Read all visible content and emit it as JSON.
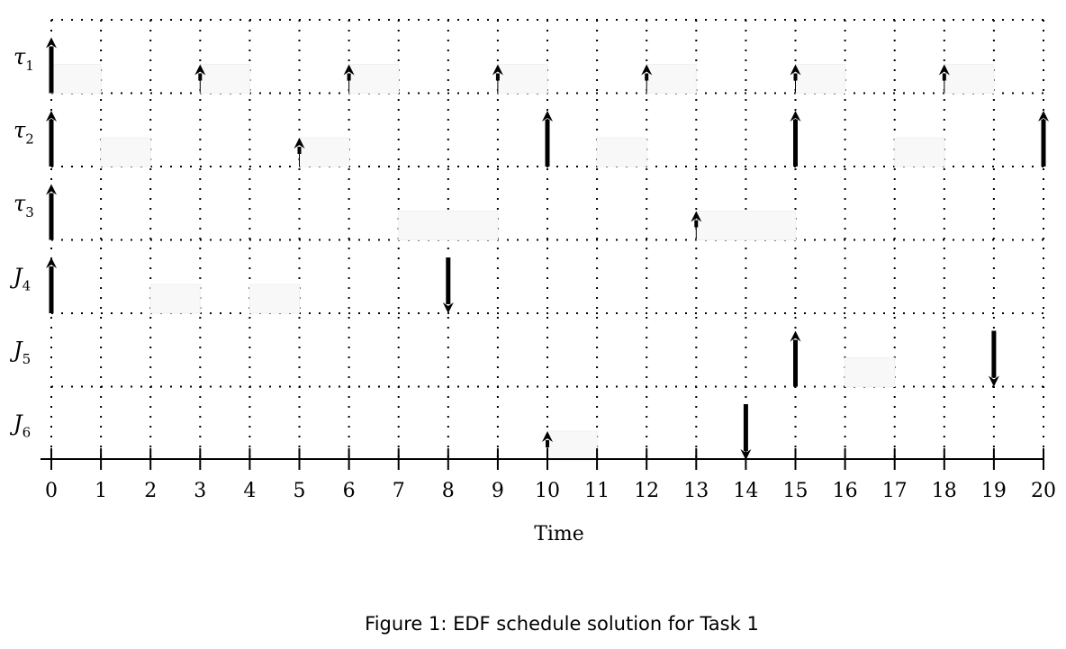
{
  "chart_data": {
    "type": "gantt",
    "xlabel": "Time",
    "x_ticks": [
      0,
      1,
      2,
      3,
      4,
      5,
      6,
      7,
      8,
      9,
      10,
      11,
      12,
      13,
      14,
      15,
      16,
      17,
      18,
      19,
      20
    ],
    "xlim": [
      0,
      20
    ],
    "grid": true,
    "rows": [
      {
        "label": "τ",
        "sub": "1",
        "executions": [
          [
            0,
            1
          ],
          [
            3,
            4
          ],
          [
            6,
            7
          ],
          [
            9,
            10
          ],
          [
            12,
            13
          ],
          [
            15,
            16
          ],
          [
            18,
            19
          ]
        ],
        "releases": [
          0,
          3,
          6,
          9,
          12,
          15,
          18
        ],
        "deadlines": []
      },
      {
        "label": "τ",
        "sub": "2",
        "executions": [
          [
            1,
            2
          ],
          [
            5,
            6
          ],
          [
            11,
            12
          ],
          [
            17,
            18
          ]
        ],
        "releases": [
          0,
          5,
          10,
          15,
          20
        ],
        "deadlines": []
      },
      {
        "label": "τ",
        "sub": "3",
        "executions": [
          [
            7,
            9
          ],
          [
            13,
            15
          ]
        ],
        "releases": [
          0,
          13
        ],
        "deadlines": []
      },
      {
        "label": "J",
        "sub": "4",
        "executions": [
          [
            2,
            3
          ],
          [
            4,
            5
          ]
        ],
        "releases": [
          0
        ],
        "deadlines": [
          8
        ]
      },
      {
        "label": "J",
        "sub": "5",
        "executions": [
          [
            16,
            17
          ]
        ],
        "releases": [
          15
        ],
        "deadlines": [
          19
        ]
      },
      {
        "label": "J",
        "sub": "6",
        "executions": [
          [
            10,
            11
          ]
        ],
        "releases": [
          10
        ],
        "deadlines": [
          14
        ]
      }
    ]
  },
  "caption": "Figure 1: EDF schedule solution for Task 1"
}
